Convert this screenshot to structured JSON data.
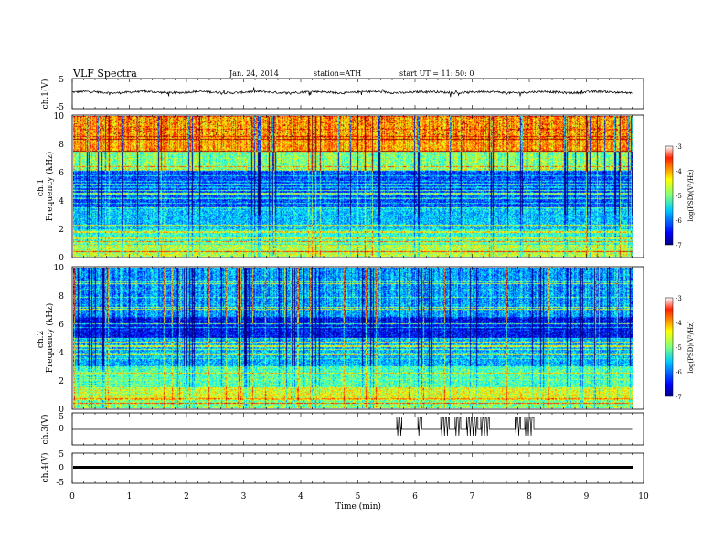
{
  "header": {
    "title": "VLF  Spectra",
    "date": "Jan. 24, 2014",
    "station": "station=ATH",
    "start": "start  UT =   11: 50: 0"
  },
  "chart_data": [
    {
      "type": "line",
      "name": "ch1",
      "ylabel": "ch.1(V)",
      "xlim": [
        0,
        10
      ],
      "ylim": [
        -5,
        5
      ],
      "yticks": [
        "5",
        "-5"
      ],
      "description_level": 0.2
    },
    {
      "type": "heatmap",
      "name": "ch1-spectrogram",
      "ylabel": "ch.1\nFrequency (kHz)",
      "xlim": [
        0,
        10
      ],
      "ylim": [
        0,
        10
      ],
      "yticks": [
        "0",
        "2",
        "4",
        "6",
        "8",
        "10"
      ],
      "data_end_min": 9.8,
      "colorbar": {
        "label": "log(PSD)(V²/Hz)",
        "range": [
          -7,
          -3
        ],
        "ticks": [
          "-3",
          "-4",
          "-5",
          "-6",
          "-7"
        ]
      }
    },
    {
      "type": "heatmap",
      "name": "ch2-spectrogram",
      "ylabel": "ch.2\nFrequency (kHz)",
      "xlim": [
        0,
        10
      ],
      "ylim": [
        0,
        10
      ],
      "yticks": [
        "0",
        "2",
        "4",
        "6",
        "8",
        "10"
      ],
      "data_end_min": 9.8,
      "colorbar": {
        "label": "log(PSD)(V²/Hz)",
        "range": [
          -7,
          -3
        ],
        "ticks": [
          "-3",
          "-4",
          "-5",
          "-6",
          "-7"
        ]
      }
    },
    {
      "type": "line",
      "name": "ch3",
      "ylabel": "ch.3(V)",
      "xlim": [
        0,
        10
      ],
      "ylim": [
        -5,
        5
      ],
      "yticks": [
        "5",
        "0"
      ],
      "baseline": -1.5,
      "pulses": [
        [
          5.68,
          5.77
        ],
        [
          6.05,
          6.12
        ],
        [
          6.45,
          6.6
        ],
        [
          6.7,
          6.8
        ],
        [
          6.9,
          7.1
        ],
        [
          7.15,
          7.3
        ],
        [
          7.75,
          7.85
        ],
        [
          7.92,
          8.08
        ]
      ]
    },
    {
      "type": "line",
      "name": "ch4",
      "ylabel": "ch.4(V)",
      "xlim": [
        0,
        10
      ],
      "ylim": [
        -5,
        5
      ],
      "yticks": [
        "5",
        "0",
        "-5"
      ],
      "level": 0
    }
  ],
  "xaxis": {
    "label": "Time  (min)",
    "ticks": [
      "0",
      "1",
      "2",
      "3",
      "4",
      "5",
      "6",
      "7",
      "8",
      "9",
      "10"
    ]
  }
}
